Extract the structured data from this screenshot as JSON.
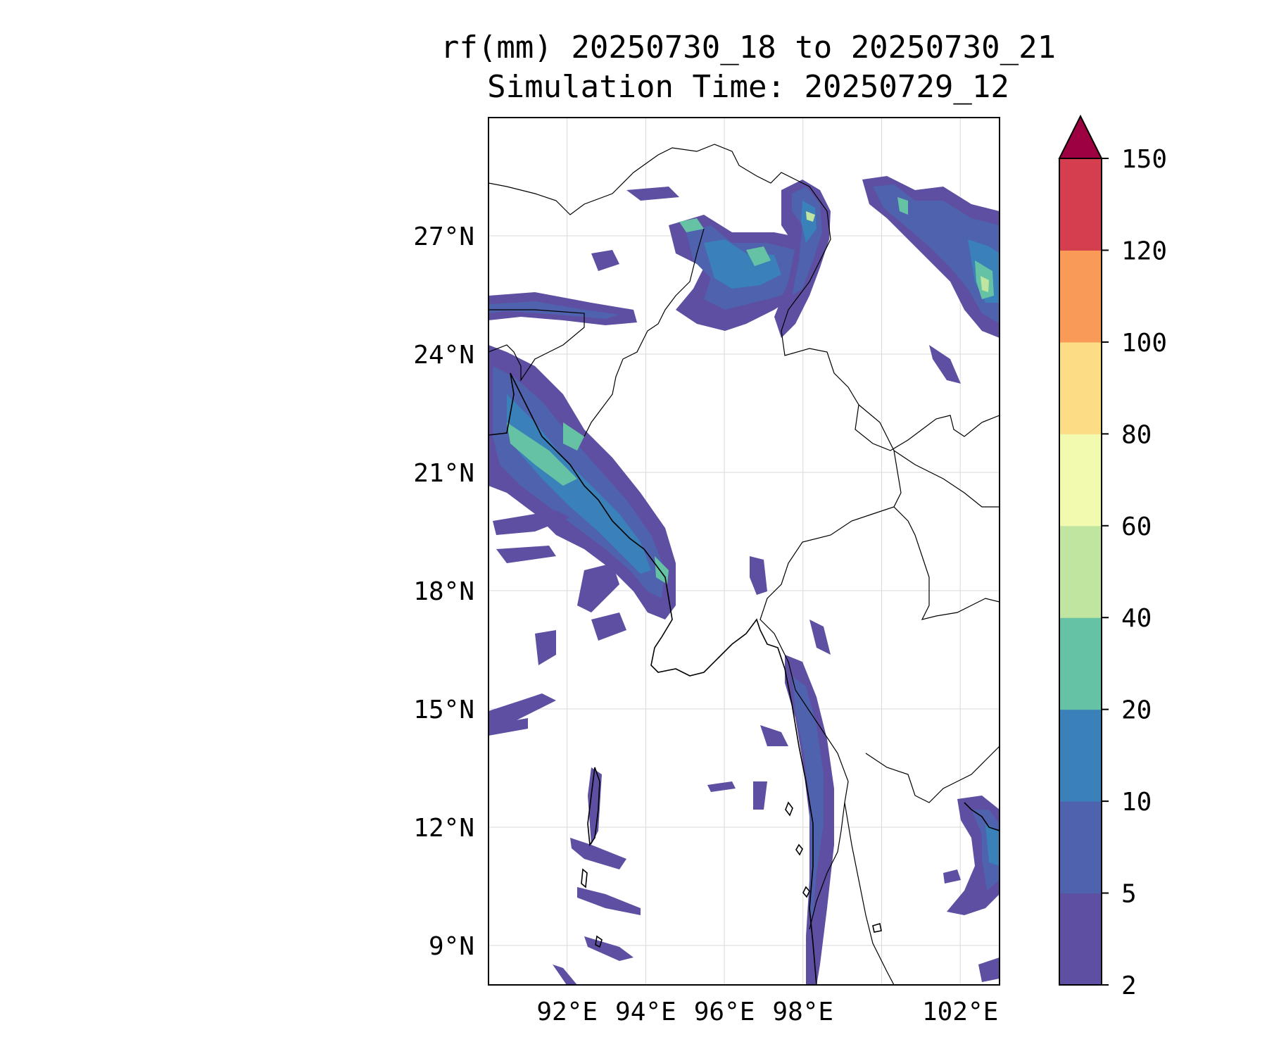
{
  "title": {
    "line1": "rf(mm) 20250730_18 to 20250730_21",
    "line2": "Simulation Time: 20250729_12"
  },
  "map": {
    "lon_range": [
      90.0,
      103.0
    ],
    "lat_range": [
      8.0,
      30.0
    ],
    "gridlines": true,
    "lat_ticks": [
      {
        "value": 9,
        "label": "9°N"
      },
      {
        "value": 12,
        "label": "12°N"
      },
      {
        "value": 15,
        "label": "15°N"
      },
      {
        "value": 18,
        "label": "18°N"
      },
      {
        "value": 21,
        "label": "21°N"
      },
      {
        "value": 24,
        "label": "24°N"
      },
      {
        "value": 27,
        "label": "27°N"
      }
    ],
    "lon_ticks": [
      {
        "value": 92,
        "label": "92°E"
      },
      {
        "value": 94,
        "label": "94°E"
      },
      {
        "value": 96,
        "label": "96°E"
      },
      {
        "value": 98,
        "label": "98°E"
      },
      {
        "value": 102,
        "label": "102°E"
      }
    ]
  },
  "colorbar": {
    "levels": [
      "2",
      "5",
      "10",
      "20",
      "40",
      "60",
      "80",
      "100",
      "120",
      "150"
    ],
    "colors": [
      "#5e4fa2",
      "#4f62ad",
      "#3a80b9",
      "#66c2a5",
      "#bfe5a0",
      "#f2faaf",
      "#fddc86",
      "#f99b56",
      "#d53e4f"
    ],
    "extend_color": "#9e0142",
    "extend": "max"
  },
  "rain_colors": {
    "light": "#5e4fa2",
    "moderate": "#4f62ad",
    "heavy": "#3a80b9",
    "very_heavy": "#66c2a5",
    "extreme": "#bfe5a0",
    "peak": "#f2faaf"
  }
}
